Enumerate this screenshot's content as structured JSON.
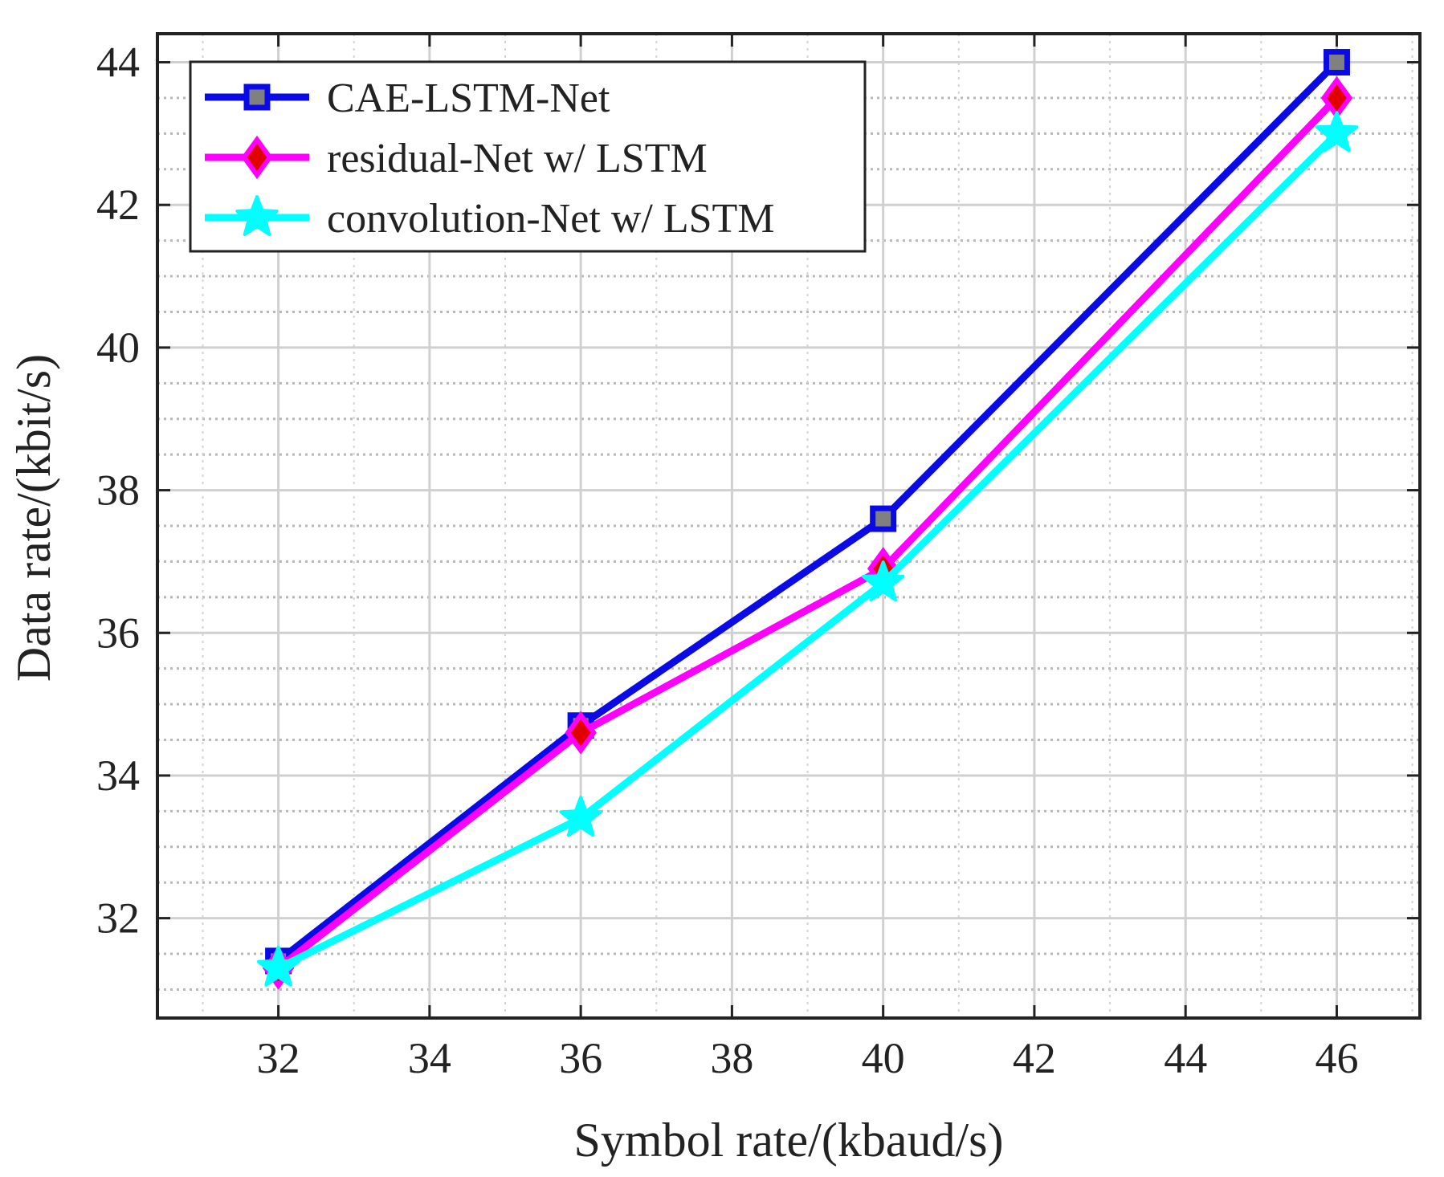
{
  "chart_data": {
    "type": "line",
    "title": "",
    "xlabel": "Symbol rate/(kbaud/s)",
    "ylabel": "Data rate/(kbit/s)",
    "x": [
      32,
      36,
      40,
      46
    ],
    "xlim": [
      30.4,
      47.1
    ],
    "ylim": [
      30.6,
      44.4
    ],
    "xticks": [
      32,
      34,
      36,
      38,
      40,
      42,
      44,
      46
    ],
    "yticks": [
      32,
      34,
      36,
      38,
      40,
      42,
      44
    ],
    "xtick_labels": [
      "32",
      "34",
      "36",
      "38",
      "40",
      "42",
      "44",
      "46"
    ],
    "ytick_labels": [
      "32",
      "34",
      "36",
      "38",
      "40",
      "42",
      "44"
    ],
    "grid": true,
    "minor_grid": true,
    "legend_position": "top-left",
    "series": [
      {
        "name": "CAE-LSTM-Net",
        "values": [
          31.4,
          34.7,
          37.6,
          44.0
        ],
        "color": "#0a0ae6",
        "marker": "square",
        "marker_fill": "#808080"
      },
      {
        "name": "residual-Net w/ LSTM",
        "values": [
          31.3,
          34.6,
          36.9,
          43.5
        ],
        "color": "#ff00ff",
        "marker": "diamond",
        "marker_fill": "#e00000"
      },
      {
        "name": "convolution-Net w/ LSTM",
        "values": [
          31.3,
          33.4,
          36.7,
          43.0
        ],
        "color": "#00ffff",
        "marker": "star",
        "marker_fill": "#00ffff"
      }
    ]
  }
}
